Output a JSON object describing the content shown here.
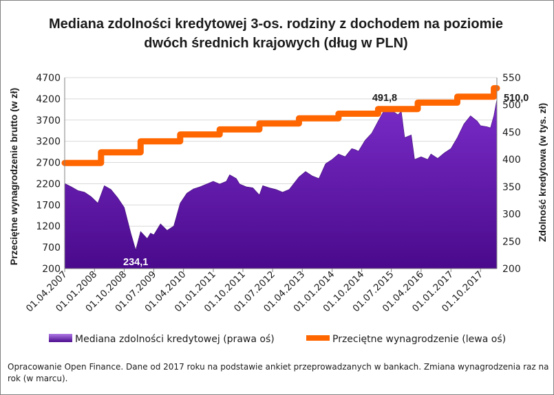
{
  "chart_data": {
    "type": "area",
    "title": "Mediana zdolności kredytowej 3-os. rodziny z dochodem na poziomie dwóch średnich krajowych (dług w PLN)",
    "title_lines": [
      "Mediana zdolności kredytowej 3-os. rodziny z dochodem na poziomie",
      "dwóch średnich krajowych (dług w PLN)"
    ],
    "ylabel_left": "Przeciętne wynagrodzenie brutto (w zł)",
    "ylabel_right": "Zdolność kredytowa  (w tys. zł)",
    "ylim_left": [
      200,
      4700
    ],
    "ylim_right": [
      200,
      550
    ],
    "yticks_left": [
      200,
      700,
      1200,
      1700,
      2200,
      2700,
      3200,
      3700,
      4200,
      4700
    ],
    "yticks_right": [
      200,
      250,
      300,
      350,
      400,
      450,
      500,
      550
    ],
    "xlim": [
      "2007-04-01",
      "2018-03-01"
    ],
    "xtick_labels": [
      "01.04.2007",
      "01.01.2008",
      "01.10.2008",
      "01.07.2009",
      "01.04.2010",
      "01.01.2011",
      "01.10.2011",
      "01.07.2012",
      "01.04.2013",
      "01.01.2014",
      "01.10.2014",
      "01.07.2015",
      "01.04.2016",
      "01.01.2017",
      "01.10.2017"
    ],
    "xtick_dates": [
      "2007-04-01",
      "2008-01-01",
      "2008-10-01",
      "2009-07-01",
      "2010-04-01",
      "2011-01-01",
      "2011-10-01",
      "2012-07-01",
      "2013-04-01",
      "2014-01-01",
      "2014-10-01",
      "2015-07-01",
      "2016-04-01",
      "2017-01-01",
      "2017-10-01"
    ],
    "grid": true,
    "legend_position": "bottom",
    "series": [
      {
        "name": "Mediana zdolności kredytowej (prawa oś)",
        "kind": "area",
        "axis": "right",
        "color": "#5b0fa8",
        "points": [
          [
            "2007-04-01",
            356
          ],
          [
            "2007-06-01",
            350
          ],
          [
            "2007-08-01",
            343
          ],
          [
            "2007-10-01",
            340
          ],
          [
            "2007-12-01",
            332
          ],
          [
            "2008-02-01",
            320
          ],
          [
            "2008-04-01",
            352
          ],
          [
            "2008-06-01",
            345
          ],
          [
            "2008-08-01",
            330
          ],
          [
            "2008-10-01",
            312
          ],
          [
            "2008-12-01",
            265
          ],
          [
            "2009-01-15",
            234.1
          ],
          [
            "2009-03-01",
            268
          ],
          [
            "2009-05-01",
            255
          ],
          [
            "2009-06-01",
            265
          ],
          [
            "2009-07-01",
            262
          ],
          [
            "2009-09-01",
            282
          ],
          [
            "2009-11-01",
            270
          ],
          [
            "2010-01-01",
            278
          ],
          [
            "2010-03-01",
            320
          ],
          [
            "2010-05-01",
            338
          ],
          [
            "2010-07-01",
            346
          ],
          [
            "2010-09-01",
            350
          ],
          [
            "2010-11-01",
            355
          ],
          [
            "2011-01-01",
            360
          ],
          [
            "2011-03-01",
            355
          ],
          [
            "2011-05-01",
            360
          ],
          [
            "2011-06-01",
            372
          ],
          [
            "2011-08-01",
            365
          ],
          [
            "2011-09-01",
            355
          ],
          [
            "2011-11-01",
            350
          ],
          [
            "2012-01-01",
            348
          ],
          [
            "2012-03-01",
            335
          ],
          [
            "2012-04-01",
            352
          ],
          [
            "2012-06-01",
            348
          ],
          [
            "2012-08-01",
            345
          ],
          [
            "2012-10-01",
            340
          ],
          [
            "2012-12-01",
            345
          ],
          [
            "2013-03-01",
            368
          ],
          [
            "2013-05-01",
            378
          ],
          [
            "2013-07-01",
            370
          ],
          [
            "2013-09-01",
            365
          ],
          [
            "2013-11-01",
            392
          ],
          [
            "2014-01-01",
            400
          ],
          [
            "2014-03-01",
            410
          ],
          [
            "2014-05-01",
            405
          ],
          [
            "2014-07-01",
            420
          ],
          [
            "2014-08-01",
            418
          ],
          [
            "2014-09-01",
            415
          ],
          [
            "2014-11-01",
            435
          ],
          [
            "2015-01-01",
            448
          ],
          [
            "2015-03-01",
            470
          ],
          [
            "2015-05-01",
            491.8
          ],
          [
            "2015-07-01",
            490
          ],
          [
            "2015-09-01",
            482
          ],
          [
            "2015-10-01",
            488
          ],
          [
            "2015-11-01",
            440
          ],
          [
            "2016-01-01",
            445
          ],
          [
            "2016-02-01",
            400
          ],
          [
            "2016-04-01",
            405
          ],
          [
            "2016-06-01",
            400
          ],
          [
            "2016-07-01",
            410
          ],
          [
            "2016-09-01",
            402
          ],
          [
            "2016-11-01",
            412
          ],
          [
            "2017-01-01",
            420
          ],
          [
            "2017-03-01",
            440
          ],
          [
            "2017-05-01",
            465
          ],
          [
            "2017-07-01",
            480
          ],
          [
            "2017-09-01",
            470
          ],
          [
            "2017-10-01",
            462
          ],
          [
            "2017-12-01",
            460
          ],
          [
            "2018-01-01",
            458
          ],
          [
            "2018-02-01",
            480
          ],
          [
            "2018-03-01",
            510.0
          ]
        ]
      },
      {
        "name": "Przeciętne wynagrodzenie (lewa oś)",
        "kind": "step-line",
        "axis": "left",
        "color": "#ff6600",
        "points": [
          [
            "2007-04-01",
            2690
          ],
          [
            "2008-03-01",
            2690
          ],
          [
            "2008-03-01",
            2940
          ],
          [
            "2009-03-01",
            2940
          ],
          [
            "2009-03-01",
            3200
          ],
          [
            "2010-03-01",
            3200
          ],
          [
            "2010-03-01",
            3360
          ],
          [
            "2011-03-01",
            3360
          ],
          [
            "2011-03-01",
            3480
          ],
          [
            "2012-03-01",
            3480
          ],
          [
            "2012-03-01",
            3620
          ],
          [
            "2013-03-01",
            3620
          ],
          [
            "2013-03-01",
            3740
          ],
          [
            "2014-03-01",
            3740
          ],
          [
            "2014-03-01",
            3850
          ],
          [
            "2015-03-01",
            3850
          ],
          [
            "2015-03-01",
            3960
          ],
          [
            "2016-03-01",
            3960
          ],
          [
            "2016-03-01",
            4110
          ],
          [
            "2017-03-01",
            4110
          ],
          [
            "2017-03-01",
            4250
          ],
          [
            "2018-02-01",
            4250
          ],
          [
            "2018-02-01",
            4450
          ],
          [
            "2018-03-01",
            4450
          ]
        ]
      }
    ],
    "annotations": [
      {
        "text": "234,1",
        "date": "2009-01-15",
        "value": 234.1,
        "axis": "right",
        "color": "#ffffff",
        "anchor": "below"
      },
      {
        "text": "491,8",
        "date": "2015-05-01",
        "value": 491.8,
        "axis": "right",
        "color": "#1a1a1a",
        "anchor": "above"
      },
      {
        "text": "510,0",
        "date": "2018-03-01",
        "value": 510.0,
        "axis": "right",
        "color": "#1a1a1a",
        "anchor": "right"
      }
    ]
  },
  "footnote": "Opracowanie Open Finance. Dane od 2017 roku na podstawie ankiet przeprowadzanych w bankach.  Zmiana wynagrodzenia raz na rok (w marcu)."
}
